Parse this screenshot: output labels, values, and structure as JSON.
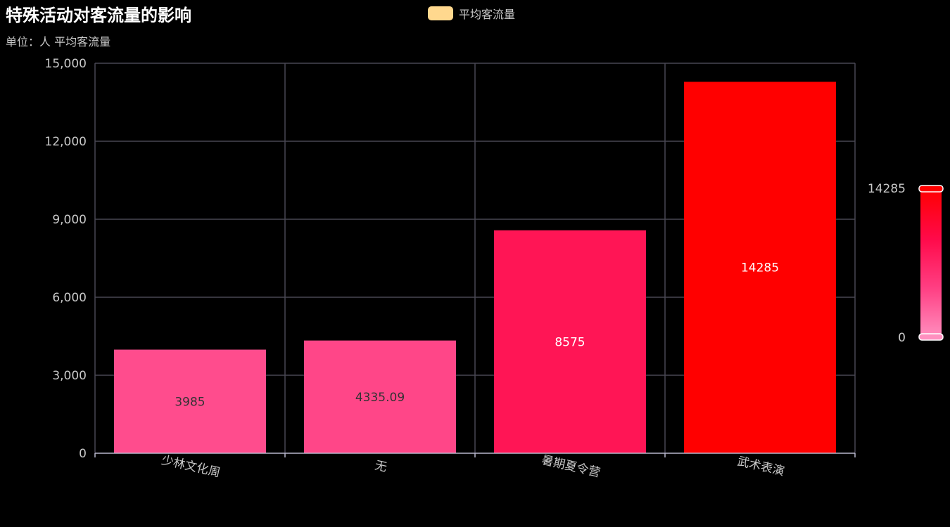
{
  "title": "特殊活动对客流量的影响",
  "subtitle": "单位：人  平均客流量",
  "legend": {
    "label": "平均客流量",
    "color": "#ffd88e"
  },
  "chart_data": {
    "type": "bar",
    "categories": [
      "少林文化周",
      "无",
      "暑期夏令营",
      "武术表演"
    ],
    "series": [
      {
        "name": "平均客流量",
        "values": [
          3985,
          4335.09,
          8575,
          14285
        ],
        "labels": [
          "3985",
          "4335.09",
          "8575",
          "14285"
        ]
      }
    ],
    "ylim": [
      0,
      15000
    ],
    "yticks": [
      0,
      3000,
      6000,
      9000,
      12000,
      15000
    ],
    "ytick_labels": [
      "0",
      "3,000",
      "6,000",
      "9,000",
      "12,000",
      "15,000"
    ],
    "grid": true,
    "visual_map": {
      "min": 0,
      "max": 14285,
      "min_label": "0",
      "max_label": "14285",
      "colors": [
        "#ff8fbf",
        "#ff3f83",
        "#ff0a4a",
        "#ff0000"
      ]
    }
  },
  "colors": {
    "background": "#000000",
    "grid": "#484753",
    "axis": "#b9b8ce",
    "text": "#c8c8c8",
    "label_dark": "#333333",
    "label_light": "#ffffff"
  }
}
